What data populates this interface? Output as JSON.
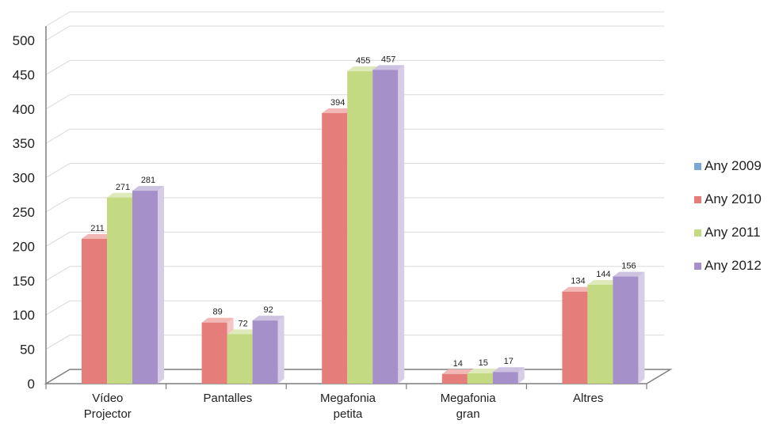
{
  "chart_data": {
    "type": "bar",
    "title": "",
    "xlabel": "",
    "ylabel": "",
    "categories": [
      [
        "Vídeo",
        "Projector"
      ],
      [
        "Pantalles"
      ],
      [
        "Megafonia",
        "petita"
      ],
      [
        "Megafonia",
        "gran"
      ],
      [
        "Altres"
      ]
    ],
    "series": [
      {
        "name": "Any 2009",
        "color": "#7ba7d6",
        "values": [
          null,
          null,
          null,
          null,
          null
        ]
      },
      {
        "name": "Any 2010",
        "color": "#e57d7a",
        "values": [
          211,
          89,
          394,
          14,
          134
        ]
      },
      {
        "name": "Any 2011",
        "color": "#c3d982",
        "values": [
          271,
          72,
          455,
          15,
          144
        ]
      },
      {
        "name": "Any 2012",
        "color": "#a690c9",
        "values": [
          281,
          92,
          457,
          17,
          156
        ]
      }
    ],
    "ylim": [
      0,
      500
    ],
    "yticks": [
      0,
      50,
      100,
      150,
      200,
      250,
      300,
      350,
      400,
      450,
      500
    ],
    "grid": true,
    "legend": "right",
    "style": "3d-columns"
  }
}
